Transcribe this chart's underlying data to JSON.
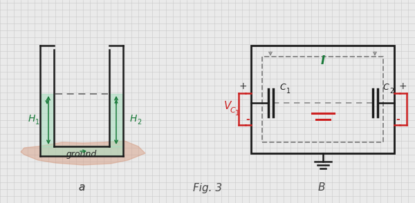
{
  "bg_color": "#eaeaea",
  "grid_color": "#c8c8c8",
  "fig_width": 6.0,
  "fig_height": 2.94,
  "left_panel": {
    "water_color": "#a8dfc0",
    "water_alpha": 0.55,
    "ground_color": "#d4967a",
    "ground_alpha": 0.45,
    "dashed_color": "#666666",
    "arrow_color": "#1a7a3a",
    "label_color": "#1a7a3a",
    "wall_color": "#1a1a1a"
  },
  "right_panel": {
    "box_color": "#1a1a1a",
    "dashed_color": "#888888",
    "cap_color": "#1a1a1a",
    "voltage_color": "#cc2020",
    "current_color": "#1a7a3a",
    "ground_color": "#1a1a1a"
  },
  "label_a": "a",
  "label_b": "B",
  "fig3_text": "Fig. 3"
}
